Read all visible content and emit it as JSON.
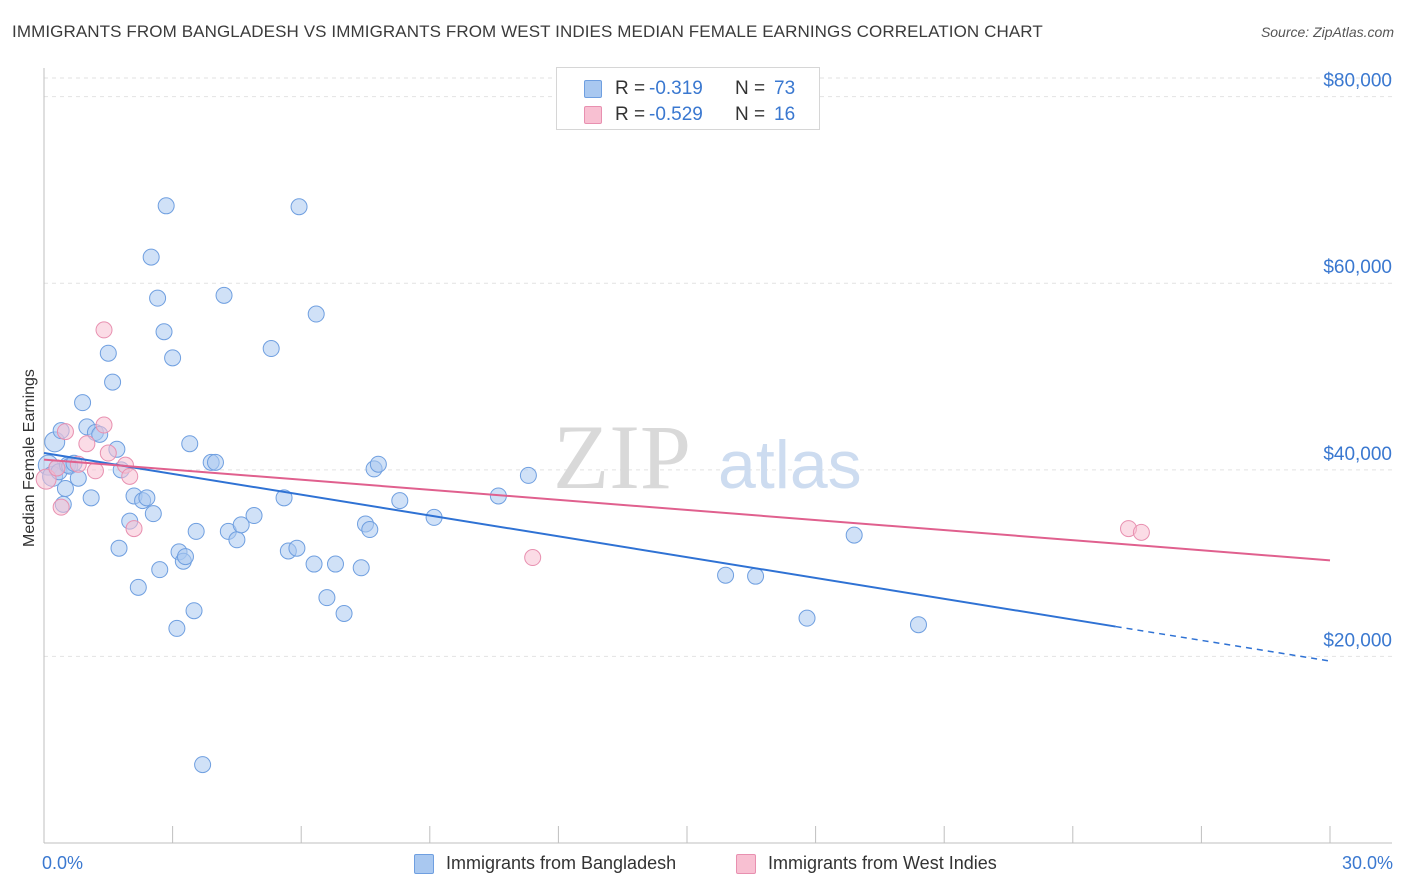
{
  "header": {
    "title": "IMMIGRANTS FROM BANGLADESH VS IMMIGRANTS FROM WEST INDIES MEDIAN FEMALE EARNINGS CORRELATION CHART",
    "source": "Source: ZipAtlas.com"
  },
  "watermark": {
    "zip": "ZIP",
    "atlas": "atlas"
  },
  "stats": [
    {
      "r_label": "R =",
      "r_value": "-0.319",
      "n_label": "N =",
      "n_value": "73",
      "color": "#a9c8f0",
      "stroke": "#6f9fe0"
    },
    {
      "r_label": "R =",
      "r_value": "-0.529",
      "n_label": "N =",
      "n_value": "16",
      "color": "#f8c0d2",
      "stroke": "#e890b0"
    }
  ],
  "legend": {
    "items": [
      {
        "label": "Immigrants from Bangladesh",
        "color": "#a9c8f0",
        "stroke": "#6f9fe0"
      },
      {
        "label": "Immigrants from West Indies",
        "color": "#f8c0d2",
        "stroke": "#e890b0"
      }
    ]
  },
  "chart_data": {
    "type": "scatter",
    "title": "IMMIGRANTS FROM BANGLADESH VS IMMIGRANTS FROM WEST INDIES MEDIAN FEMALE EARNINGS CORRELATION CHART",
    "xlabel": "",
    "ylabel": "Median Female Earnings",
    "xlim": [
      0,
      30
    ],
    "ylim": [
      0,
      82000
    ],
    "x_tick_labels": [
      {
        "value": 0,
        "label": "0.0%"
      },
      {
        "value": 30,
        "label": "30.0%"
      }
    ],
    "y_ticks": [
      {
        "value": 20000,
        "label": "$20,000"
      },
      {
        "value": 40000,
        "label": "$40,000"
      },
      {
        "value": 60000,
        "label": "$60,000"
      },
      {
        "value": 80000,
        "label": "$80,000"
      }
    ],
    "grid": true,
    "series": [
      {
        "name": "Immigrants from Bangladesh",
        "color": "#a9c8f0",
        "stroke": "#6f9fe0",
        "line_color": "#2f72d4",
        "trend": {
          "x_start": 0,
          "y_start": 41800,
          "x_end": 25.0,
          "y_end": 23200,
          "dash_to_x": 30,
          "dash_to_y": 19500
        },
        "points": [
          [
            0.1,
            40500
          ],
          [
            0.2,
            39300
          ],
          [
            0.25,
            43000
          ],
          [
            0.3,
            40200
          ],
          [
            0.35,
            39800
          ],
          [
            0.4,
            44200
          ],
          [
            0.45,
            36300
          ],
          [
            0.5,
            38000
          ],
          [
            0.55,
            40500
          ],
          [
            0.6,
            40400
          ],
          [
            0.7,
            40700
          ],
          [
            0.8,
            39100
          ],
          [
            0.9,
            47200
          ],
          [
            1.0,
            44600
          ],
          [
            1.1,
            37000
          ],
          [
            1.2,
            44000
          ],
          [
            1.3,
            43800
          ],
          [
            1.5,
            52500
          ],
          [
            1.6,
            49400
          ],
          [
            1.7,
            42200
          ],
          [
            1.75,
            31600
          ],
          [
            1.8,
            40000
          ],
          [
            2.0,
            34500
          ],
          [
            2.1,
            37200
          ],
          [
            2.2,
            27400
          ],
          [
            2.3,
            36700
          ],
          [
            2.4,
            37000
          ],
          [
            2.5,
            62800
          ],
          [
            2.55,
            35300
          ],
          [
            2.65,
            58400
          ],
          [
            2.7,
            29300
          ],
          [
            2.8,
            54800
          ],
          [
            2.85,
            68300
          ],
          [
            3.0,
            52000
          ],
          [
            3.1,
            23000
          ],
          [
            3.15,
            31200
          ],
          [
            3.25,
            30200
          ],
          [
            3.3,
            30700
          ],
          [
            3.4,
            42800
          ],
          [
            3.5,
            24900
          ],
          [
            3.55,
            33400
          ],
          [
            3.7,
            8400
          ],
          [
            3.9,
            40800
          ],
          [
            4.0,
            40800
          ],
          [
            4.2,
            58700
          ],
          [
            4.3,
            33400
          ],
          [
            4.5,
            32500
          ],
          [
            4.6,
            34100
          ],
          [
            4.9,
            35100
          ],
          [
            5.3,
            53000
          ],
          [
            5.6,
            37000
          ],
          [
            5.7,
            31300
          ],
          [
            5.9,
            31600
          ],
          [
            5.95,
            68200
          ],
          [
            6.3,
            29900
          ],
          [
            6.35,
            56700
          ],
          [
            6.6,
            26300
          ],
          [
            6.8,
            29900
          ],
          [
            7.0,
            24600
          ],
          [
            7.4,
            29500
          ],
          [
            7.5,
            34200
          ],
          [
            7.6,
            33600
          ],
          [
            7.7,
            40100
          ],
          [
            7.8,
            40600
          ],
          [
            8.3,
            36700
          ],
          [
            9.1,
            34900
          ],
          [
            10.6,
            37200
          ],
          [
            11.3,
            39400
          ],
          [
            15.9,
            28700
          ],
          [
            16.6,
            28600
          ],
          [
            17.8,
            24100
          ],
          [
            18.9,
            33000
          ],
          [
            20.4,
            23400
          ]
        ]
      },
      {
        "name": "Immigrants from West Indies",
        "color": "#f8c0d2",
        "stroke": "#e890b0",
        "line_color": "#e0608e",
        "trend": {
          "x_start": 0,
          "y_start": 41100,
          "x_end": 30,
          "y_end": 30300
        },
        "points": [
          [
            0.05,
            39000
          ],
          [
            0.3,
            40200
          ],
          [
            0.4,
            36000
          ],
          [
            0.5,
            44100
          ],
          [
            0.8,
            40600
          ],
          [
            1.0,
            42800
          ],
          [
            1.2,
            39900
          ],
          [
            1.4,
            44800
          ],
          [
            1.5,
            41800
          ],
          [
            1.9,
            40500
          ],
          [
            2.0,
            39300
          ],
          [
            2.1,
            33700
          ],
          [
            1.4,
            55000
          ],
          [
            11.4,
            30600
          ],
          [
            25.3,
            33700
          ],
          [
            25.6,
            33300
          ]
        ]
      }
    ]
  }
}
